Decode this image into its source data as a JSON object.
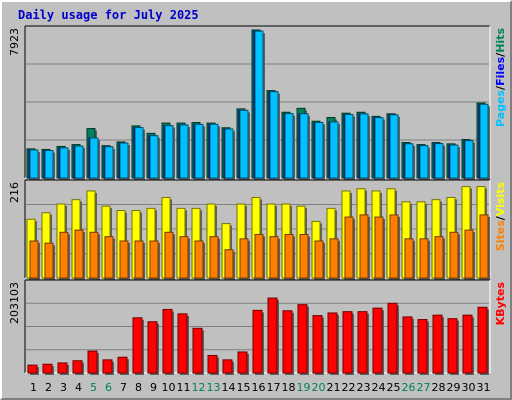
{
  "title": "Daily usage for July 2025",
  "colors": {
    "hits": "#00805c",
    "files": "#0000ff",
    "pages": "#00c0ff",
    "visits": "#ffff00",
    "sites": "#ff8000",
    "kbytes": "#ff0000",
    "weekday_label": "#000000",
    "weekend_label": "#00805c",
    "panel_bg": "#c0c0c0"
  },
  "legend": {
    "top": [
      {
        "text": "Pages",
        "key": "pages"
      },
      {
        "text": "/",
        "key": "sep"
      },
      {
        "text": "Files",
        "key": "files"
      },
      {
        "text": "/",
        "key": "sep"
      },
      {
        "text": "Hits",
        "key": "hits"
      }
    ],
    "middle": [
      {
        "text": "Sites",
        "key": "sites"
      },
      {
        "text": "/",
        "key": "sep"
      },
      {
        "text": "Visits",
        "key": "visits"
      }
    ],
    "bottom": [
      {
        "text": "KBytes",
        "key": "kbytes"
      }
    ]
  },
  "chart_data": {
    "type": "bar",
    "title": "Daily usage for July 2025",
    "categories": [
      "1",
      "2",
      "3",
      "4",
      "5",
      "6",
      "7",
      "8",
      "9",
      "10",
      "11",
      "12",
      "13",
      "14",
      "15",
      "16",
      "17",
      "18",
      "19",
      "20",
      "21",
      "22",
      "23",
      "24",
      "25",
      "26",
      "27",
      "28",
      "29",
      "30",
      "31"
    ],
    "weekend_days": [
      "5",
      "6",
      "12",
      "13",
      "19",
      "20",
      "26",
      "27"
    ],
    "panels": [
      {
        "id": "top",
        "ylabel": "7923",
        "ymax": 7923,
        "series": [
          {
            "name": "Hits",
            "key": "hits",
            "values": [
              1560,
              1530,
              1690,
              1790,
              2650,
              1730,
              1930,
              2790,
              2390,
              2940,
              2940,
              2970,
              2940,
              2690,
              3700,
              7923,
              4680,
              3520,
              3730,
              3040,
              3240,
              3470,
              3520,
              3300,
              3440,
              1900,
              1790,
              1900,
              1830,
              2060,
              4010
            ]
          },
          {
            "name": "Files",
            "key": "files",
            "values": [
              1500,
              1470,
              1610,
              1710,
              2140,
              1670,
              1870,
              2700,
              2260,
              2800,
              2840,
              2870,
              2870,
              2620,
              3620,
              7860,
              4620,
              3450,
              3440,
              2970,
              3000,
              3400,
              3430,
              3230,
              3380,
              1830,
              1730,
              1840,
              1760,
              2000,
              3940
            ]
          },
          {
            "name": "Pages",
            "key": "pages",
            "values": [
              1500,
              1470,
              1610,
              1710,
              2140,
              1670,
              1870,
              2700,
              2260,
              2800,
              2840,
              2870,
              2870,
              2620,
              3620,
              7860,
              4620,
              3450,
              3440,
              2970,
              3000,
              3400,
              3430,
              3230,
              3380,
              1830,
              1730,
              1840,
              1760,
              2000,
              3940
            ]
          }
        ]
      },
      {
        "id": "middle",
        "ylabel": "216",
        "ymax": 216,
        "series": [
          {
            "name": "Visits",
            "key": "visits",
            "values": [
              135,
              150,
              170,
              180,
              200,
              165,
              155,
              155,
              160,
              185,
              160,
              160,
              170,
              125,
              170,
              185,
              170,
              170,
              165,
              130,
              160,
              200,
              205,
              200,
              205,
              175,
              175,
              180,
              185,
              210,
              210
            ]
          },
          {
            "name": "Sites",
            "key": "sites",
            "values": [
              85,
              80,
              105,
              110,
              105,
              95,
              85,
              85,
              85,
              105,
              95,
              85,
              95,
              65,
              90,
              100,
              95,
              100,
              100,
              85,
              90,
              140,
              145,
              140,
              145,
              90,
              90,
              95,
              105,
              110,
              145
            ]
          }
        ]
      },
      {
        "id": "bottom",
        "ylabel": "203103",
        "ymax": 203103,
        "series": [
          {
            "name": "KBytes",
            "key": "kbytes",
            "values": [
              18000,
              20000,
              23000,
              28000,
              50000,
              30000,
              36000,
              126000,
              117000,
              145000,
              135000,
              102000,
              40000,
              30000,
              48000,
              143000,
              171000,
              142000,
              156000,
              131000,
              137000,
              140000,
              140000,
              148000,
              159000,
              128000,
              122000,
              132000,
              124000,
              132000,
              150000
            ]
          }
        ]
      }
    ]
  }
}
